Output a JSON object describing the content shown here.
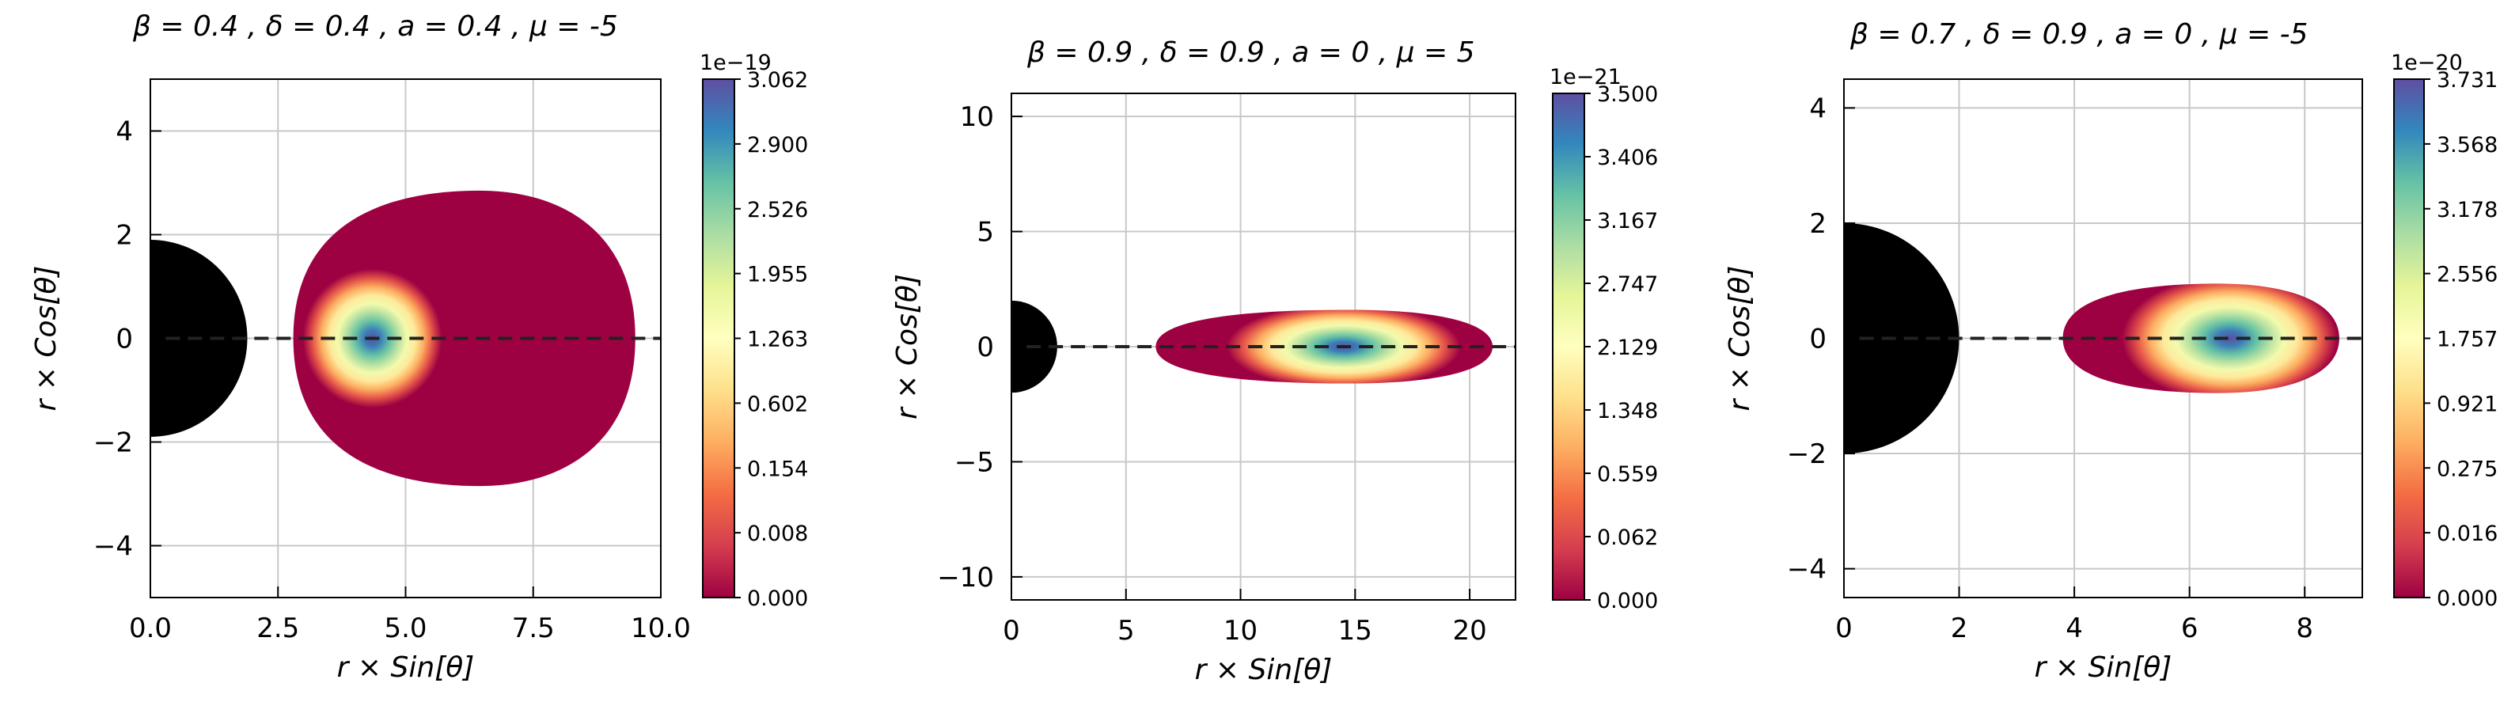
{
  "figure": {
    "background": "#ffffff"
  },
  "chart_data": [
    {
      "type": "heatmap",
      "title": "β = 0.4 , δ = 0.4 , a = 0.4 , μ = -5",
      "xlabel": "r × Sin[θ]",
      "ylabel": "r × Cos[θ]",
      "xlim": [
        0,
        10
      ],
      "ylim": [
        -5,
        5
      ],
      "xticks": [
        "0.0",
        "2.5",
        "5.0",
        "7.5",
        "10.0"
      ],
      "yticks": [
        "−4",
        "−2",
        "0",
        "2",
        "4"
      ],
      "grid": true,
      "black_hole_radius": 1.9,
      "disk": {
        "inner_edge": 2.8,
        "outer_edge": 9.5,
        "half_height": 2.85,
        "center": 6.45,
        "peak_x": 4.35,
        "peak_halfwidth": 0.8
      },
      "colorbar": {
        "exponent": "1e−19",
        "ticks": [
          "0.000",
          "0.008",
          "0.154",
          "0.602",
          "1.263",
          "1.955",
          "2.526",
          "2.900",
          "3.062"
        ]
      }
    },
    {
      "type": "heatmap",
      "title": "β = 0.9 , δ = 0.9 , a = 0 , μ = 5",
      "xlabel": "r × Sin[θ]",
      "ylabel": "r × Cos[θ]",
      "xlim": [
        0,
        22
      ],
      "ylim": [
        -11,
        11
      ],
      "xticks": [
        "0",
        "5",
        "10",
        "15",
        "20"
      ],
      "yticks": [
        "−10",
        "−5",
        "0",
        "5",
        "10"
      ],
      "grid": true,
      "black_hole_radius": 2.0,
      "disk": {
        "inner_edge": 6.3,
        "outer_edge": 21.0,
        "half_height": 1.6,
        "center": 14.8,
        "peak_x": 14.5,
        "peak_halfwidth": 3.0
      },
      "colorbar": {
        "exponent": "1e−21",
        "ticks": [
          "0.000",
          "0.062",
          "0.559",
          "1.348",
          "2.129",
          "2.747",
          "3.167",
          "3.406",
          "3.500"
        ]
      }
    },
    {
      "type": "heatmap",
      "title": "β = 0.7 , δ = 0.9 , a = 0 , μ = -5",
      "xlabel": "r × Sin[θ]",
      "ylabel": "r × Cos[θ]",
      "xlim": [
        0,
        9
      ],
      "ylim": [
        -4.5,
        4.5
      ],
      "xticks": [
        "0",
        "2",
        "4",
        "6",
        "8"
      ],
      "yticks": [
        "−4",
        "−2",
        "0",
        "2",
        "4"
      ],
      "grid": true,
      "black_hole_radius": 2.0,
      "disk": {
        "inner_edge": 3.8,
        "outer_edge": 8.6,
        "half_height": 0.95,
        "center": 6.5,
        "peak_x": 6.7,
        "peak_halfwidth": 1.1
      },
      "colorbar": {
        "exponent": "1e−20",
        "ticks": [
          "0.000",
          "0.016",
          "0.275",
          "0.921",
          "1.757",
          "2.556",
          "3.178",
          "3.568",
          "3.731"
        ]
      }
    }
  ]
}
